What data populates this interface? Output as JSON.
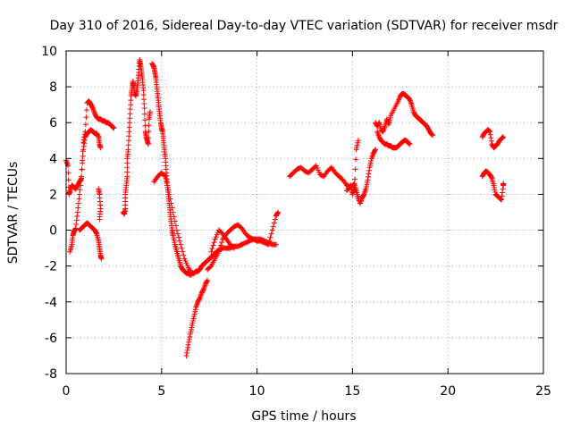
{
  "chart_data": {
    "type": "scatter",
    "title": "Day 310 of 2016, Sidereal Day-to-day VTEC variation (SDTVAR) for receiver msdr",
    "xlabel": "GPS time / hours",
    "ylabel": "SDTVAR / TECUs",
    "xlim": [
      0,
      25
    ],
    "ylim": [
      -8,
      10
    ],
    "x_ticks": [
      0,
      5,
      10,
      15,
      20,
      25
    ],
    "y_ticks": [
      -8,
      -6,
      -4,
      -2,
      0,
      2,
      4,
      6,
      8,
      10
    ],
    "x_tick_labels": [
      "0",
      "5",
      "10",
      "15",
      "20",
      "25"
    ],
    "y_tick_labels": [
      "-8",
      "-6",
      "-4",
      "-2",
      "0",
      "2",
      "4",
      "6",
      "8",
      "10"
    ],
    "grid": true,
    "marker": "plus",
    "color": "#ff0000",
    "series": [
      {
        "x": [
          0.0,
          0.1,
          0.15,
          0.2,
          0.3,
          0.4,
          0.5,
          0.6,
          0.7,
          0.8,
          0.9,
          1.0,
          1.1,
          1.2,
          1.3,
          1.4,
          1.5,
          1.6,
          1.7,
          1.8,
          1.9,
          2.0,
          2.1,
          2.2,
          2.3,
          2.4,
          2.5
        ],
        "y": [
          3.9,
          3.6,
          2.0,
          2.2,
          2.5,
          2.4,
          2.3,
          2.5,
          2.7,
          2.9,
          4.9,
          5.5,
          7.1,
          7.2,
          7.0,
          6.8,
          6.5,
          6.3,
          6.2,
          6.2,
          6.1,
          6.1,
          6.0,
          6.0,
          5.9,
          5.8,
          5.7
        ]
      },
      {
        "x": [
          0.2,
          0.3,
          0.35,
          0.4,
          0.5,
          0.6,
          0.7,
          0.8,
          0.9,
          1.0,
          1.1,
          1.2,
          1.3,
          1.4,
          1.5,
          1.6,
          1.7,
          1.75,
          1.8
        ],
        "y": [
          -1.2,
          -0.8,
          -0.3,
          -0.1,
          0.1,
          1.0,
          2.0,
          3.0,
          4.5,
          5.2,
          5.4,
          5.5,
          5.6,
          5.5,
          5.4,
          5.4,
          5.2,
          4.8,
          4.6
        ]
      },
      {
        "x": [
          0.7,
          0.8,
          0.9,
          1.0,
          1.1,
          1.2,
          1.3,
          1.4,
          1.5,
          1.6,
          1.7,
          1.75,
          1.8,
          1.85
        ],
        "y": [
          0.0,
          0.1,
          0.2,
          0.3,
          0.4,
          0.3,
          0.2,
          0.1,
          0.0,
          -0.2,
          -0.6,
          -1.0,
          -1.4,
          -1.6
        ]
      },
      {
        "x": [
          1.7,
          1.75,
          1.8,
          1.75
        ],
        "y": [
          2.3,
          2.0,
          1.2,
          0.6
        ]
      },
      {
        "x": [
          3.0,
          3.05,
          3.1,
          3.1,
          3.15,
          3.2,
          3.2,
          3.25,
          3.3,
          3.35,
          3.4,
          3.45,
          3.5,
          3.55,
          3.6,
          3.65,
          3.7,
          3.75,
          3.8,
          3.85,
          3.9,
          3.95,
          4.0,
          4.05,
          4.1,
          4.15,
          4.2,
          4.25,
          4.3,
          4.35,
          4.4
        ],
        "y": [
          1.0,
          0.9,
          1.2,
          2.0,
          2.5,
          3.0,
          4.0,
          4.5,
          5.5,
          6.5,
          7.5,
          7.9,
          8.3,
          8.0,
          7.6,
          7.5,
          7.8,
          8.2,
          8.8,
          9.5,
          9.2,
          8.8,
          8.4,
          7.8,
          6.8,
          5.5,
          5.2,
          5.0,
          4.8,
          6.2,
          6.6
        ]
      },
      {
        "x": [
          4.5,
          4.6,
          4.65,
          4.7,
          4.75,
          4.8,
          4.85,
          4.9,
          4.95,
          5.0,
          5.05,
          5.1,
          5.15,
          5.2,
          5.25,
          5.3,
          5.35,
          5.4,
          5.45,
          5.5,
          5.55,
          5.6,
          5.7,
          5.8,
          5.9,
          6.0,
          6.1,
          6.2,
          6.3,
          6.4,
          6.5,
          6.6,
          6.7,
          6.8,
          6.9,
          7.0,
          7.1,
          7.2,
          7.3,
          7.4,
          7.5,
          7.6,
          7.7,
          7.8,
          7.9,
          8.0,
          8.2,
          8.4,
          8.6,
          8.8,
          9.0,
          9.2,
          9.4,
          9.6,
          9.8,
          10.0,
          10.2,
          10.4,
          10.6,
          10.8,
          11.0
        ],
        "y": [
          9.3,
          9.1,
          8.8,
          8.5,
          8.0,
          7.5,
          7.0,
          6.5,
          6.0,
          5.7,
          5.5,
          5.0,
          4.5,
          4.0,
          3.2,
          2.5,
          2.0,
          1.5,
          1.0,
          0.5,
          0.0,
          -0.3,
          -0.8,
          -1.2,
          -1.6,
          -2.0,
          -2.2,
          -2.3,
          -2.4,
          -2.4,
          -2.5,
          -2.4,
          -2.4,
          -2.3,
          -2.3,
          -2.2,
          -2.0,
          -1.9,
          -1.8,
          -1.7,
          -1.6,
          -1.5,
          -1.4,
          -1.3,
          -1.2,
          -1.1,
          -1.0,
          -1.0,
          -1.0,
          -0.9,
          -0.9,
          -0.8,
          -0.7,
          -0.6,
          -0.5,
          -0.5,
          -0.5,
          -0.6,
          -0.7,
          -0.8,
          -0.8
        ]
      },
      {
        "x": [
          4.6,
          4.8,
          5.0,
          5.2,
          5.3,
          5.4,
          5.6,
          5.8,
          6.0,
          6.2,
          6.4,
          6.6
        ],
        "y": [
          2.7,
          3.0,
          3.2,
          3.0,
          2.5,
          2.0,
          1.0,
          0.0,
          -0.8,
          -1.6,
          -2.1,
          -2.4
        ]
      },
      {
        "x": [
          6.3,
          6.4,
          6.5,
          6.6,
          6.7,
          6.8,
          6.9,
          7.0,
          7.1,
          7.2,
          7.3,
          7.4
        ],
        "y": [
          -7.0,
          -6.4,
          -5.8,
          -5.3,
          -4.8,
          -4.3,
          -4.0,
          -3.8,
          -3.5,
          -3.3,
          -3.0,
          -2.8
        ]
      },
      {
        "x": [
          7.4,
          7.6,
          7.8,
          8.0,
          8.2,
          8.4,
          8.6,
          8.8,
          9.0,
          9.2,
          9.4,
          9.6,
          9.8,
          10.0,
          10.2,
          10.4,
          10.6,
          10.8,
          11.0,
          11.1
        ],
        "y": [
          -2.2,
          -2.0,
          -1.6,
          -1.2,
          -0.5,
          -0.2,
          0.0,
          0.2,
          0.3,
          0.1,
          -0.2,
          -0.4,
          -0.5,
          -0.6,
          -0.6,
          -0.7,
          -0.8,
          0.0,
          0.8,
          1.0
        ]
      },
      {
        "x": [
          7.6,
          7.8,
          8.0,
          8.2,
          8.4,
          8.6,
          8.8
        ],
        "y": [
          -1.2,
          -0.5,
          0.0,
          -0.2,
          -0.5,
          -0.8,
          -1.0
        ]
      },
      {
        "x": [
          11.7,
          11.9,
          12.1,
          12.3,
          12.5,
          12.7,
          12.9,
          13.1,
          13.3,
          13.5,
          13.7,
          13.9,
          14.1,
          14.3,
          14.5,
          14.7,
          14.9,
          15.1,
          15.2,
          15.3,
          15.4,
          15.5,
          15.6,
          15.7,
          15.8,
          15.9,
          16.0,
          16.1,
          16.2
        ],
        "y": [
          3.0,
          3.2,
          3.4,
          3.5,
          3.3,
          3.2,
          3.4,
          3.6,
          3.1,
          3.0,
          3.3,
          3.5,
          3.2,
          3.0,
          2.8,
          2.5,
          2.4,
          2.6,
          2.2,
          1.8,
          1.5,
          1.8,
          2.0,
          2.3,
          2.8,
          3.5,
          4.0,
          4.3,
          4.5
        ]
      },
      {
        "x": [
          14.7,
          14.9,
          15.0,
          15.1,
          15.2,
          15.3
        ],
        "y": [
          2.2,
          2.5,
          2.0,
          2.3,
          4.5,
          5.0
        ]
      },
      {
        "x": [
          16.2,
          16.3,
          16.4,
          16.5,
          16.6,
          16.7,
          16.8,
          16.9,
          17.0,
          17.2,
          17.4,
          17.5,
          17.6,
          17.7,
          17.8,
          17.9,
          18.0,
          18.1,
          18.2,
          18.3,
          18.4,
          18.5,
          18.6,
          18.7,
          18.8,
          18.9,
          19.0,
          19.1,
          19.2
        ],
        "y": [
          6.0,
          5.8,
          6.0,
          5.6,
          5.5,
          5.8,
          6.2,
          5.9,
          6.4,
          6.8,
          7.2,
          7.5,
          7.6,
          7.6,
          7.5,
          7.4,
          7.3,
          7.0,
          6.6,
          6.4,
          6.3,
          6.2,
          6.1,
          6.0,
          5.9,
          5.8,
          5.6,
          5.4,
          5.3
        ]
      },
      {
        "x": [
          16.3,
          16.4,
          16.5,
          16.6,
          16.7,
          16.8,
          16.9,
          17.0,
          17.1,
          17.2,
          17.3,
          17.4,
          17.5,
          17.6,
          17.7,
          17.8,
          17.9,
          18.0
        ],
        "y": [
          5.5,
          5.2,
          5.0,
          4.9,
          4.8,
          4.8,
          4.7,
          4.7,
          4.6,
          4.6,
          4.6,
          4.7,
          4.8,
          4.9,
          5.0,
          5.0,
          4.9,
          4.8
        ]
      },
      {
        "x": [
          21.8,
          21.9,
          22.0,
          22.1,
          22.2,
          22.3,
          22.4,
          22.5,
          22.6,
          22.7,
          22.8,
          22.9
        ],
        "y": [
          5.2,
          5.4,
          5.5,
          5.6,
          5.5,
          4.8,
          4.6,
          4.7,
          4.8,
          5.0,
          5.1,
          5.2
        ]
      },
      {
        "x": [
          21.8,
          21.9,
          22.0,
          22.1,
          22.2,
          22.3,
          22.4,
          22.5,
          22.6,
          22.7,
          22.8,
          22.9,
          22.9
        ],
        "y": [
          3.0,
          3.2,
          3.3,
          3.2,
          3.1,
          2.9,
          2.5,
          2.0,
          1.9,
          1.8,
          1.7,
          2.5,
          2.6
        ]
      }
    ]
  }
}
